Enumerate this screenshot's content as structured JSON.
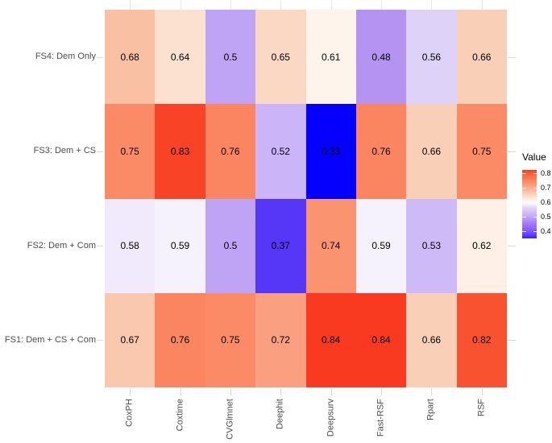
{
  "chart_data": {
    "type": "heatmap",
    "title": "",
    "x_categories": [
      "CoxPH",
      "Coxtime",
      "CVGlmnet",
      "Deephit",
      "Deepsurv",
      "Fast-RSF",
      "Rpart",
      "RSF"
    ],
    "y_categories_top_to_bottom": [
      "FS4: Dem Only",
      "FS3: Dem + CS",
      "FS2: Dem + Com",
      "FS1: Dem + CS + Com"
    ],
    "rows": [
      {
        "label": "FS4: Dem Only",
        "values": [
          "0.68",
          "0.64",
          "0.5",
          "0.65",
          "0.61",
          "0.48",
          "0.56",
          "0.66"
        ]
      },
      {
        "label": "FS3: Dem + CS",
        "values": [
          "0.75",
          "0.83",
          "0.76",
          "0.52",
          "0.33",
          "0.76",
          "0.66",
          "0.75"
        ]
      },
      {
        "label": "FS2: Dem + Com",
        "values": [
          "0.58",
          "0.59",
          "0.5",
          "0.37",
          "0.74",
          "0.59",
          "0.53",
          "0.62"
        ]
      },
      {
        "label": "FS1: Dem + CS + Com",
        "values": [
          "0.67",
          "0.76",
          "0.75",
          "0.72",
          "0.84",
          "0.84",
          "0.66",
          "0.82"
        ]
      }
    ],
    "value_colors": {
      "0.33": "#0500FD",
      "0.37": "#5637F7",
      "0.48": "#B493F3",
      "0.5": "#BFA4F5",
      "0.52": "#CBB4F7",
      "0.53": "#CFBAF8",
      "0.56": "#DED2F9",
      "0.58": "#F0EAFC",
      "0.59": "#F6F2FD",
      "0.61": "#FEF4EC",
      "0.62": "#FEF0E6",
      "0.64": "#FCE0D0",
      "0.65": "#FBD8C4",
      "0.66": "#FACFB8",
      "0.67": "#FAC8AE",
      "0.68": "#F9C0A4",
      "0.72": "#FAA080",
      "0.74": "#FA9370",
      "0.75": "#FA8B66",
      "0.76": "#FA8560",
      "0.82": "#F95231",
      "0.83": "#F94327",
      "0.84": "#F93920"
    },
    "cell_text_color": "#000000",
    "axis_text_color": "#4d4d4d",
    "legend": {
      "title": "Value",
      "tick_labels": [
        "0.8",
        "0.7",
        "0.6",
        "0.5",
        "0.4"
      ],
      "low_color": "#0500FD",
      "mid_color": "#FFFFFF",
      "high_color": "#F93920",
      "midpoint": 0.6,
      "data_min": 0.33,
      "data_max": 0.84,
      "gradient_stops": [
        {
          "pos": 0,
          "color": "#F93920"
        },
        {
          "pos": 6,
          "color": "#F96341"
        },
        {
          "pos": 17,
          "color": "#FA8B66"
        },
        {
          "pos": 27,
          "color": "#FAB092"
        },
        {
          "pos": 37,
          "color": "#FBD8C4"
        },
        {
          "pos": 44,
          "color": "#FEF0E6"
        },
        {
          "pos": 48,
          "color": "#FFFFFF"
        },
        {
          "pos": 52,
          "color": "#EFE9FC"
        },
        {
          "pos": 56,
          "color": "#DED2F9"
        },
        {
          "pos": 69,
          "color": "#BFA4F5"
        },
        {
          "pos": 79,
          "color": "#A378F4"
        },
        {
          "pos": 90,
          "color": "#7D55F5"
        },
        {
          "pos": 96,
          "color": "#5637F7"
        },
        {
          "pos": 100,
          "color": "#3B21FA"
        }
      ]
    }
  }
}
